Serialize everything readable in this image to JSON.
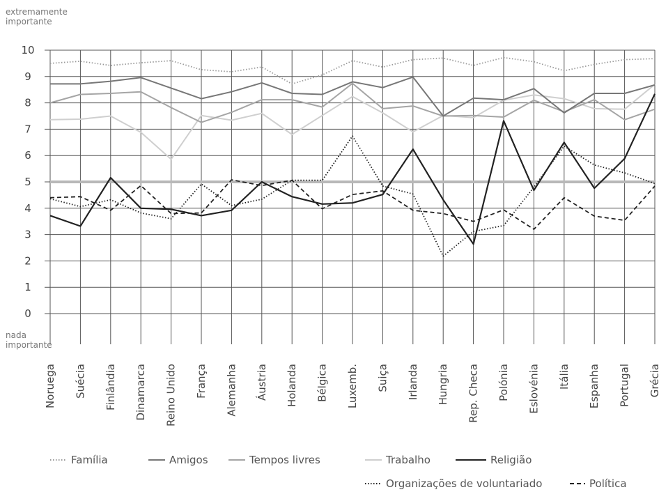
{
  "chart_data": {
    "type": "line",
    "title": "",
    "y_top_label": [
      "extremamente",
      "importante"
    ],
    "y_bottom_label": [
      "nada",
      "importante"
    ],
    "ylim": [
      0,
      10
    ],
    "yticks": [
      0,
      1,
      2,
      3,
      4,
      5,
      6,
      7,
      8,
      9,
      10
    ],
    "reference_line": 5,
    "grid": true,
    "legend_position": "bottom",
    "categories": [
      "Noruega",
      "Suécia",
      "Finlândia",
      "Dinamarca",
      "Reino Unido",
      "França",
      "Alemanha",
      "Áustria",
      "Holanda",
      "Bélgica",
      "Luxemb.",
      "Suiça",
      "Irlanda",
      "Hungria",
      "Rep. Checa",
      "Polónia",
      "Eslovénia",
      "Itália",
      "Espanha",
      "Portugal",
      "Grécia"
    ],
    "series": [
      {
        "name": "Família",
        "style": "dotted",
        "color": "#9a9a9a",
        "values": [
          9.5,
          9.58,
          9.42,
          9.52,
          9.6,
          9.26,
          9.18,
          9.36,
          8.72,
          9.06,
          9.6,
          9.36,
          9.64,
          9.7,
          9.42,
          9.72,
          9.56,
          9.22,
          9.46,
          9.64,
          9.68
        ]
      },
      {
        "name": "Amigos",
        "style": "solid",
        "color": "#777777",
        "values": [
          8.72,
          8.72,
          8.82,
          8.96,
          8.56,
          8.16,
          8.42,
          8.76,
          8.36,
          8.32,
          8.8,
          8.58,
          8.98,
          7.5,
          8.18,
          8.12,
          8.54,
          7.62,
          8.36,
          8.36,
          8.68
        ]
      },
      {
        "name": "Tempos livres",
        "style": "solid",
        "color": "#a5a5a5",
        "values": [
          8.0,
          8.32,
          8.36,
          8.42,
          7.82,
          7.26,
          7.64,
          8.12,
          8.12,
          7.84,
          8.74,
          7.78,
          7.88,
          7.5,
          7.52,
          7.46,
          8.1,
          7.66,
          8.12,
          7.36,
          7.76
        ]
      },
      {
        "name": "Trabalho",
        "style": "solid",
        "color": "#cfcfcf",
        "values": [
          7.36,
          7.38,
          7.5,
          6.88,
          5.86,
          7.52,
          7.34,
          7.6,
          6.8,
          7.52,
          8.24,
          7.62,
          6.9,
          7.52,
          7.44,
          8.1,
          8.3,
          8.16,
          7.78,
          7.76,
          8.7
        ]
      },
      {
        "name": "Religião",
        "style": "solid",
        "color": "#222222",
        "values": [
          3.72,
          3.32,
          5.16,
          4.0,
          3.96,
          3.72,
          3.92,
          5.0,
          4.44,
          4.16,
          4.2,
          4.52,
          6.24,
          4.32,
          2.64,
          7.32,
          4.68,
          6.5,
          4.76,
          5.88,
          8.34
        ]
      },
      {
        "name": "Organizações de voluntariado",
        "style": "dotted",
        "color": "#222222",
        "values": [
          4.36,
          4.06,
          4.32,
          3.82,
          3.6,
          4.92,
          4.1,
          4.34,
          5.06,
          5.06,
          6.74,
          4.84,
          4.54,
          2.18,
          3.12,
          3.34,
          4.8,
          6.36,
          5.64,
          5.34,
          4.94
        ]
      },
      {
        "name": "Política",
        "style": "dashed",
        "color": "#222222",
        "values": [
          4.4,
          4.44,
          3.92,
          4.86,
          3.8,
          3.82,
          5.08,
          4.86,
          5.06,
          3.98,
          4.52,
          4.66,
          3.92,
          3.8,
          3.5,
          3.94,
          3.2,
          4.4,
          3.7,
          3.54,
          4.84
        ]
      }
    ]
  }
}
